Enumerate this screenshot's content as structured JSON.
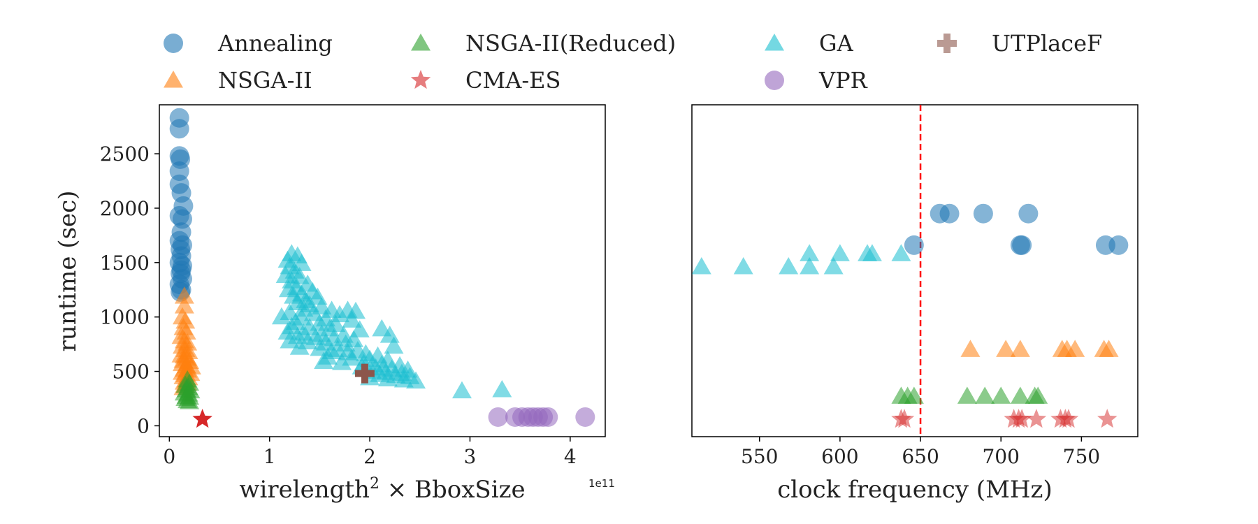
{
  "legend": {
    "placement": "top",
    "entries": [
      {
        "key": "annealing",
        "label": "Annealing",
        "color": "#1f77b4",
        "marker": "circle"
      },
      {
        "key": "nsga2reduced",
        "label": "NSGA-II(Reduced)",
        "color": "#2ca02c",
        "marker": "triangle"
      },
      {
        "key": "ga",
        "label": "GA",
        "color": "#17becf",
        "marker": "triangle"
      },
      {
        "key": "utplacef",
        "label": "UTPlaceF",
        "color": "#8c564b",
        "marker": "plus"
      },
      {
        "key": "nsga2",
        "label": "NSGA-II",
        "color": "#ff7f0e",
        "marker": "triangle"
      },
      {
        "key": "cmaes",
        "label": "CMA-ES",
        "color": "#d62728",
        "marker": "star"
      },
      {
        "key": "vpr",
        "label": "VPR",
        "color": "#9467bd",
        "marker": "circle"
      }
    ]
  },
  "chart_data": [
    {
      "type": "scatter",
      "xlabel": "wirelength² × BboxSize",
      "xlabel_base": "wirelength",
      "xlabel_sup": "2",
      "xlabel_rest": " × BboxSize",
      "ylabel": "runtime (sec)",
      "x_offset_label": "1e11",
      "xlim": [
        -0.1,
        4.35
      ],
      "ylim": [
        -100,
        2950
      ],
      "xticks": [
        0,
        1,
        2,
        3,
        4
      ],
      "xtick_labels": [
        "0",
        "1",
        "2",
        "3",
        "4"
      ],
      "yticks": [
        0,
        500,
        1000,
        1500,
        2000,
        2500
      ],
      "ytick_labels": [
        "0",
        "500",
        "1000",
        "1500",
        "2000",
        "2500"
      ],
      "series": [
        {
          "key": "annealing",
          "name": "Annealing",
          "points": [
            [
              0.1,
              2830
            ],
            [
              0.1,
              2730
            ],
            [
              0.1,
              2480
            ],
            [
              0.11,
              2450
            ],
            [
              0.1,
              2340
            ],
            [
              0.1,
              2220
            ],
            [
              0.12,
              2140
            ],
            [
              0.14,
              2020
            ],
            [
              0.1,
              1930
            ],
            [
              0.13,
              1900
            ],
            [
              0.12,
              1780
            ],
            [
              0.1,
              1700
            ],
            [
              0.13,
              1660
            ],
            [
              0.11,
              1620
            ],
            [
              0.12,
              1560
            ],
            [
              0.1,
              1500
            ],
            [
              0.13,
              1470
            ],
            [
              0.12,
              1430
            ],
            [
              0.11,
              1400
            ],
            [
              0.13,
              1350
            ],
            [
              0.1,
              1300
            ],
            [
              0.12,
              1250
            ],
            [
              0.11,
              1230
            ]
          ]
        },
        {
          "key": "nsga2",
          "name": "NSGA-II",
          "points": [
            [
              0.15,
              1190
            ],
            [
              0.15,
              1100
            ],
            [
              0.13,
              1000
            ],
            [
              0.16,
              960
            ],
            [
              0.14,
              900
            ],
            [
              0.17,
              860
            ],
            [
              0.12,
              820
            ],
            [
              0.15,
              780
            ],
            [
              0.18,
              760
            ],
            [
              0.13,
              730
            ],
            [
              0.16,
              700
            ],
            [
              0.19,
              680
            ],
            [
              0.12,
              650
            ],
            [
              0.15,
              640
            ],
            [
              0.18,
              620
            ],
            [
              0.14,
              600
            ],
            [
              0.2,
              590
            ],
            [
              0.13,
              570
            ],
            [
              0.17,
              550
            ],
            [
              0.22,
              540
            ],
            [
              0.15,
              520
            ],
            [
              0.18,
              510
            ],
            [
              0.13,
              490
            ],
            [
              0.21,
              480
            ],
            [
              0.16,
              470
            ],
            [
              0.14,
              450
            ],
            [
              0.19,
              440
            ],
            [
              0.17,
              420
            ],
            [
              0.15,
              400
            ],
            [
              0.18,
              390
            ],
            [
              0.16,
              370
            ],
            [
              0.14,
              350
            ]
          ]
        },
        {
          "key": "nsga2reduced",
          "name": "NSGA-II(Reduced)",
          "points": [
            [
              0.18,
              420
            ],
            [
              0.2,
              390
            ],
            [
              0.16,
              370
            ],
            [
              0.19,
              350
            ],
            [
              0.17,
              330
            ],
            [
              0.21,
              320
            ],
            [
              0.15,
              300
            ],
            [
              0.19,
              290
            ],
            [
              0.17,
              270
            ],
            [
              0.2,
              260
            ],
            [
              0.16,
              250
            ],
            [
              0.18,
              230
            ],
            [
              0.2,
              220
            ]
          ]
        },
        {
          "key": "ga",
          "name": "GA",
          "points": [
            [
              1.22,
              1580
            ],
            [
              1.28,
              1560
            ],
            [
              1.18,
              1520
            ],
            [
              1.32,
              1490
            ],
            [
              1.2,
              1460
            ],
            [
              1.25,
              1420
            ],
            [
              1.16,
              1380
            ],
            [
              1.3,
              1370
            ],
            [
              1.22,
              1330
            ],
            [
              1.38,
              1300
            ],
            [
              1.27,
              1270
            ],
            [
              1.19,
              1250
            ],
            [
              1.43,
              1230
            ],
            [
              1.32,
              1210
            ],
            [
              1.24,
              1190
            ],
            [
              1.48,
              1180
            ],
            [
              1.36,
              1150
            ],
            [
              1.28,
              1130
            ],
            [
              1.4,
              1110
            ],
            [
              1.52,
              1090
            ],
            [
              1.34,
              1070
            ],
            [
              1.62,
              1060
            ],
            [
              1.78,
              1060
            ],
            [
              1.86,
              1050
            ],
            [
              1.2,
              1040
            ],
            [
              1.44,
              1030
            ],
            [
              1.7,
              1020
            ],
            [
              1.12,
              1000
            ],
            [
              1.32,
              990
            ],
            [
              1.56,
              980
            ],
            [
              1.82,
              970
            ],
            [
              1.26,
              950
            ],
            [
              1.5,
              940
            ],
            [
              1.66,
              930
            ],
            [
              1.22,
              910
            ],
            [
              1.4,
              900
            ],
            [
              1.6,
              890
            ],
            [
              2.12,
              890
            ],
            [
              1.9,
              880
            ],
            [
              1.18,
              860
            ],
            [
              1.34,
              850
            ],
            [
              1.52,
              840
            ],
            [
              1.74,
              830
            ],
            [
              2.2,
              830
            ],
            [
              1.28,
              820
            ],
            [
              1.46,
              810
            ],
            [
              1.64,
              800
            ],
            [
              1.84,
              790
            ],
            [
              1.2,
              780
            ],
            [
              1.38,
              770
            ],
            [
              1.56,
              760
            ],
            [
              1.76,
              750
            ],
            [
              2.24,
              730
            ],
            [
              1.3,
              720
            ],
            [
              1.5,
              710
            ],
            [
              1.68,
              700
            ],
            [
              1.88,
              690
            ],
            [
              1.62,
              680
            ],
            [
              1.78,
              670
            ],
            [
              1.96,
              660
            ],
            [
              2.08,
              640
            ],
            [
              1.58,
              630
            ],
            [
              1.82,
              620
            ],
            [
              2.0,
              610
            ],
            [
              2.18,
              600
            ],
            [
              1.54,
              590
            ],
            [
              1.72,
              580
            ],
            [
              1.94,
              570
            ],
            [
              2.12,
              560
            ],
            [
              2.3,
              550
            ],
            [
              1.92,
              540
            ],
            [
              2.06,
              530
            ],
            [
              2.22,
              520
            ],
            [
              2.38,
              510
            ],
            [
              2.02,
              500
            ],
            [
              2.16,
              490
            ],
            [
              2.32,
              480
            ],
            [
              2.1,
              470
            ],
            [
              2.26,
              460
            ],
            [
              2.4,
              450
            ],
            [
              2.0,
              440
            ],
            [
              2.18,
              430
            ],
            [
              2.34,
              420
            ],
            [
              2.46,
              410
            ],
            [
              2.92,
              320
            ],
            [
              3.32,
              330
            ]
          ]
        },
        {
          "key": "utplacef",
          "name": "UTPlaceF",
          "points": [
            [
              1.95,
              480
            ]
          ]
        },
        {
          "key": "cmaes",
          "name": "CMA-ES",
          "points": [
            [
              0.33,
              60
            ]
          ]
        },
        {
          "key": "vpr",
          "name": "VPR",
          "points": [
            [
              3.28,
              80
            ],
            [
              3.45,
              80
            ],
            [
              3.52,
              80
            ],
            [
              3.58,
              80
            ],
            [
              3.63,
              80
            ],
            [
              3.68,
              80
            ],
            [
              3.73,
              80
            ],
            [
              3.78,
              80
            ],
            [
              4.15,
              80
            ]
          ]
        }
      ]
    },
    {
      "type": "scatter",
      "xlabel": "clock frequency (MHz)",
      "xlim": [
        508,
        785
      ],
      "ylim": [
        -100,
        2950
      ],
      "xticks": [
        550,
        600,
        650,
        700,
        750
      ],
      "xtick_labels": [
        "550",
        "600",
        "650",
        "700",
        "750"
      ],
      "yticks": [],
      "vline": {
        "x": 650,
        "color": "#ff0000",
        "style": "dashed"
      },
      "series": [
        {
          "key": "annealing",
          "name": "Annealing",
          "points": [
            [
              662,
              1950
            ],
            [
              668,
              1950
            ],
            [
              689,
              1950
            ],
            [
              717,
              1950
            ],
            [
              646,
              1660
            ],
            [
              712,
              1660
            ],
            [
              713,
              1660
            ],
            [
              765,
              1660
            ],
            [
              773,
              1660
            ]
          ]
        },
        {
          "key": "ga",
          "name": "GA",
          "points": [
            [
              514,
              1460
            ],
            [
              540,
              1460
            ],
            [
              568,
              1460
            ],
            [
              581,
              1460
            ],
            [
              596,
              1460
            ],
            [
              581,
              1580
            ],
            [
              600,
              1580
            ],
            [
              617,
              1580
            ],
            [
              620,
              1580
            ],
            [
              638,
              1580
            ]
          ]
        },
        {
          "key": "nsga2",
          "name": "NSGA-II",
          "points": [
            [
              681,
              700
            ],
            [
              703,
              700
            ],
            [
              712,
              700
            ],
            [
              738,
              700
            ],
            [
              741,
              700
            ],
            [
              746,
              700
            ],
            [
              764,
              700
            ],
            [
              767,
              700
            ]
          ]
        },
        {
          "key": "nsga2reduced",
          "name": "NSGA-II(Reduced)",
          "points": [
            [
              638,
              270
            ],
            [
              642,
              270
            ],
            [
              646,
              270
            ],
            [
              679,
              270
            ],
            [
              690,
              270
            ],
            [
              700,
              270
            ],
            [
              712,
              270
            ],
            [
              721,
              270
            ],
            [
              723,
              270
            ]
          ]
        },
        {
          "key": "cmaes",
          "name": "CMA-ES",
          "points": [
            [
              638,
              60
            ],
            [
              640,
              60
            ],
            [
              708,
              60
            ],
            [
              711,
              60
            ],
            [
              713,
              60
            ],
            [
              722,
              60
            ],
            [
              737,
              60
            ],
            [
              740,
              60
            ],
            [
              742,
              60
            ],
            [
              766,
              60
            ]
          ]
        }
      ]
    }
  ]
}
